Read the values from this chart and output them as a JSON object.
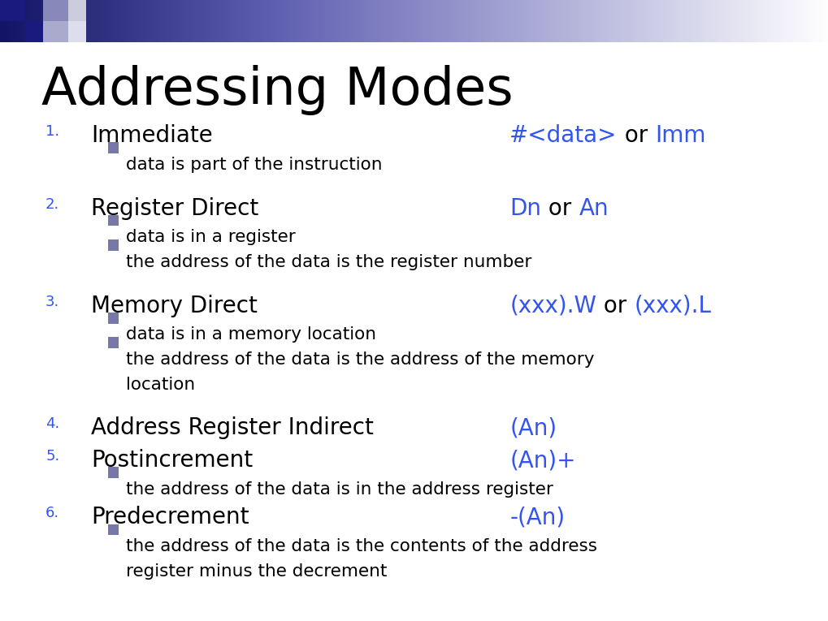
{
  "title": "Addressing Modes",
  "title_fontsize": 46,
  "title_color": "#000000",
  "background_color": "#ffffff",
  "blue_color": "#3355ee",
  "black_color": "#000000",
  "number_color": "#3355ee",
  "bullet_color": "#7777aa",
  "items": [
    {
      "number": "1.",
      "label": "Immediate",
      "notation_parts": [
        {
          "text": "#<data>",
          "color": "#3355ee"
        },
        {
          "text": " or ",
          "color": "#000000"
        },
        {
          "text": "Imm",
          "color": "#3355ee"
        }
      ],
      "bullets": [
        "data is part of the instruction"
      ],
      "extra_space_after": true
    },
    {
      "number": "2.",
      "label": "Register Direct",
      "notation_parts": [
        {
          "text": "Dn",
          "color": "#3355ee"
        },
        {
          "text": " or ",
          "color": "#000000"
        },
        {
          "text": "An",
          "color": "#3355ee"
        }
      ],
      "bullets": [
        "data is in a register",
        "the address of the data is the register number"
      ],
      "extra_space_after": true
    },
    {
      "number": "3.",
      "label": "Memory Direct",
      "notation_parts": [
        {
          "text": "(xxx).W",
          "color": "#3355ee"
        },
        {
          "text": " or ",
          "color": "#000000"
        },
        {
          "text": "(xxx).L",
          "color": "#3355ee"
        }
      ],
      "bullets": [
        "data is in a memory location",
        "the address of the data is the address of the memory\n        location"
      ],
      "extra_space_after": true
    },
    {
      "number": "4.",
      "label": "Address Register Indirect",
      "notation_parts": [
        {
          "text": "(An)",
          "color": "#3355ee"
        }
      ],
      "bullets": [],
      "extra_space_after": false
    },
    {
      "number": "5.",
      "label": "Postincrement",
      "notation_parts": [
        {
          "text": "(An)+",
          "color": "#3355ee"
        }
      ],
      "bullets": [
        "the address of the data is in the address register"
      ],
      "extra_space_after": false
    },
    {
      "number": "6.",
      "label": "Predecrement",
      "notation_parts": [
        {
          "text": "-(An)",
          "color": "#3355ee"
        }
      ],
      "bullets": [
        "the address of the data is the contents of the address\n        register minus the decrement"
      ],
      "extra_space_after": false
    }
  ]
}
